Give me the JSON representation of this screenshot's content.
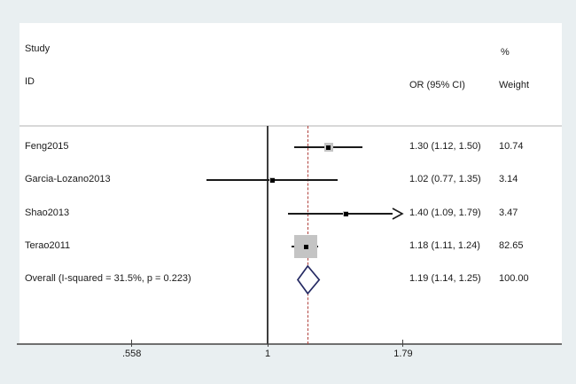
{
  "header": {
    "study_line1": "Study",
    "study_line2": "ID",
    "percent_label": "%",
    "or_label": "OR (95% CI)",
    "weight_label": "Weight"
  },
  "chart_data": {
    "type": "forest",
    "scale": "log",
    "effect_measure": "OR",
    "reference_value": 1,
    "axis": {
      "min_shown": 0.558,
      "max_shown": 1.79,
      "ticks": [
        {
          "value": 0.558,
          "label": ".558"
        },
        {
          "value": 1,
          "label": "1"
        },
        {
          "value": 1.79,
          "label": "1.79"
        }
      ]
    },
    "studies": [
      {
        "id": "Feng2015",
        "or": 1.3,
        "ci_low": 1.12,
        "ci_high": 1.5,
        "or_text": "1.30 (1.12, 1.50)",
        "weight": 10.74,
        "weight_text": "10.74",
        "arrow_high": false
      },
      {
        "id": "Garcia-Lozano2013",
        "or": 1.02,
        "ci_low": 0.77,
        "ci_high": 1.35,
        "or_text": "1.02 (0.77, 1.35)",
        "weight": 3.14,
        "weight_text": "3.14",
        "arrow_high": false
      },
      {
        "id": "Shao2013",
        "or": 1.4,
        "ci_low": 1.09,
        "ci_high": 1.79,
        "or_text": "1.40 (1.09, 1.79)",
        "weight": 3.47,
        "weight_text": "3.47",
        "arrow_high": true
      },
      {
        "id": "Terao2011",
        "or": 1.18,
        "ci_low": 1.11,
        "ci_high": 1.24,
        "or_text": "1.18 (1.11, 1.24)",
        "weight": 82.65,
        "weight_text": "82.65",
        "arrow_high": false
      }
    ],
    "overall": {
      "label": "Overall  (I-squared = 31.5%, p = 0.223)",
      "or": 1.19,
      "ci_low": 1.14,
      "ci_high": 1.25,
      "or_text": "1.19 (1.14, 1.25)",
      "weight_text": "100.00"
    },
    "heterogeneity": {
      "i_squared": "31.5%",
      "p_value": "0.223"
    },
    "colors": {
      "background": "#e9eff1",
      "panel": "#ffffff",
      "reference_line": "#3d3d3d",
      "overall_dashed_line": "#b0413c",
      "ci_line": "#1a1a1a",
      "marker": "#000000",
      "weight_box": "#c4c4c4",
      "diamond_outline": "#252a63",
      "axis_line": "#6f6f6f",
      "text": "#1a1a1a"
    }
  }
}
